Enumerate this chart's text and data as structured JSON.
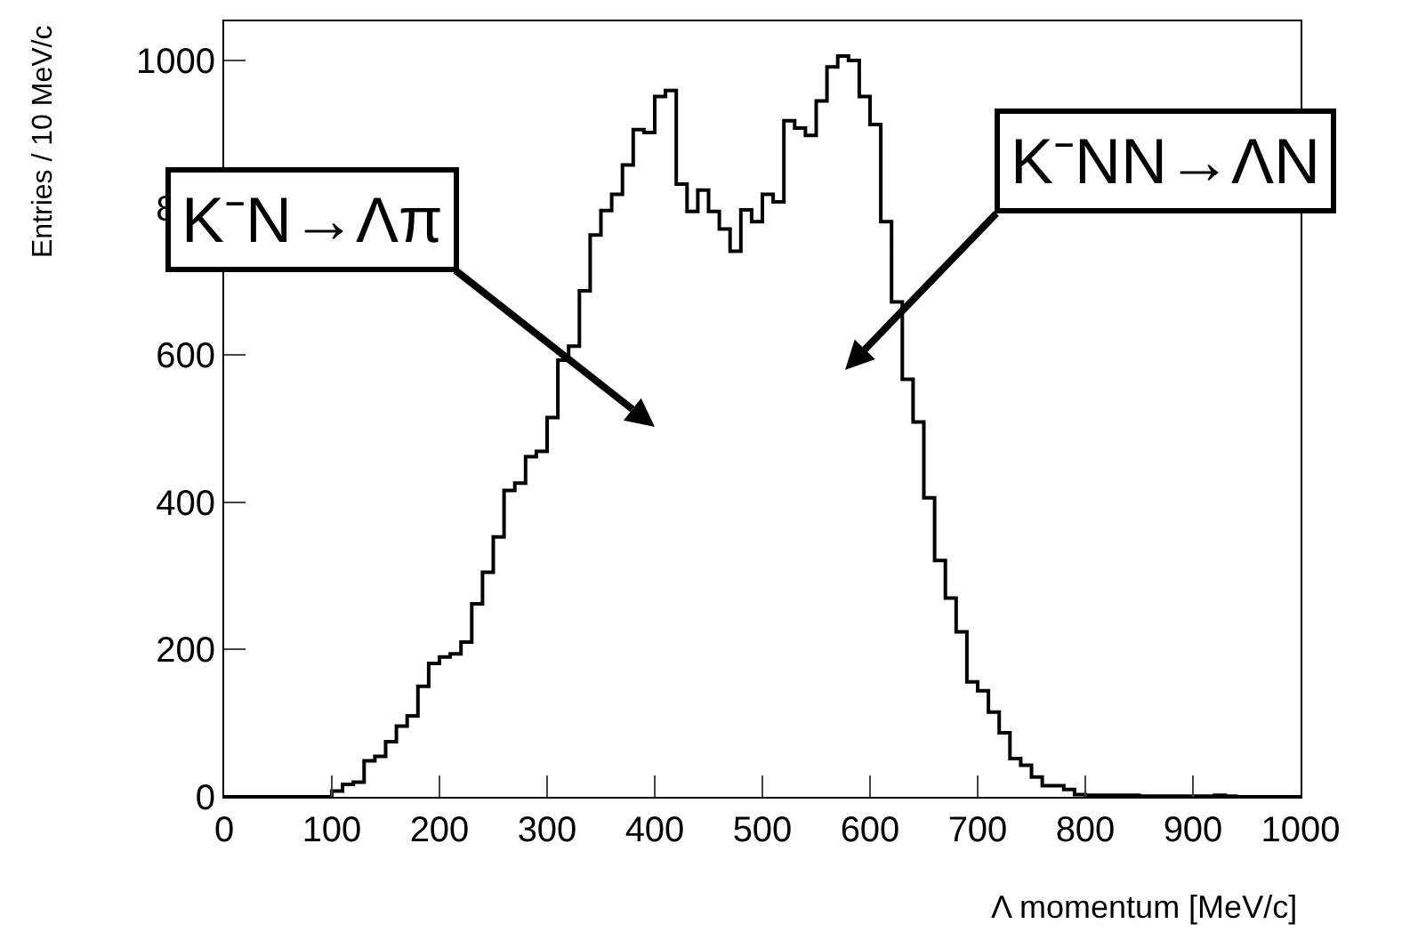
{
  "chart_data": {
    "type": "histogram",
    "xlabel": "Λ momentum [MeV/c]",
    "ylabel": "Entries / 10 MeV/c",
    "bins": [
      0,
      10,
      20,
      30,
      40,
      50,
      60,
      70,
      80,
      90,
      100,
      110,
      120,
      130,
      140,
      150,
      160,
      170,
      180,
      190,
      200,
      210,
      220,
      230,
      240,
      250,
      260,
      270,
      280,
      290,
      300,
      310,
      320,
      330,
      340,
      350,
      360,
      370,
      380,
      390,
      400,
      410,
      420,
      430,
      440,
      450,
      460,
      470,
      480,
      490,
      500,
      510,
      520,
      530,
      540,
      550,
      560,
      570,
      580,
      590,
      600,
      610,
      620,
      630,
      640,
      650,
      660,
      670,
      680,
      690,
      700,
      710,
      720,
      730,
      740,
      750,
      760,
      770,
      780,
      790,
      800,
      810,
      820,
      830,
      840,
      850,
      860,
      870,
      880,
      890,
      900,
      910,
      920,
      930,
      940,
      950,
      960,
      970,
      980,
      990,
      1000
    ],
    "values": [
      0,
      0,
      0,
      0,
      0,
      0,
      0,
      0,
      0,
      0,
      8,
      17,
      20,
      49,
      55,
      75,
      96,
      110,
      150,
      181,
      190,
      194,
      210,
      262,
      305,
      353,
      416,
      426,
      462,
      469,
      515,
      593,
      612,
      687,
      763,
      796,
      818,
      858,
      906,
      902,
      951,
      959,
      832,
      795,
      824,
      795,
      771,
      741,
      797,
      781,
      818,
      808,
      918,
      908,
      898,
      945,
      991,
      1006,
      1000,
      951,
      913,
      781,
      672,
      567,
      509,
      406,
      321,
      270,
      224,
      156,
      144,
      115,
      87,
      52,
      43,
      27,
      15,
      15,
      10,
      3,
      2,
      2,
      2,
      2,
      2,
      1,
      1,
      1,
      1,
      1,
      1,
      1,
      2,
      1,
      0,
      0,
      0,
      0,
      0,
      0
    ],
    "color": "#000000",
    "xlim": [
      0,
      1000
    ],
    "ylim": [
      0,
      1053
    ],
    "xticks": [
      0,
      100,
      200,
      300,
      400,
      500,
      600,
      700,
      800,
      900,
      1000
    ],
    "yticks": [
      0,
      200,
      400,
      600,
      800,
      1000
    ],
    "grid": false,
    "annotations": [
      "K⁻N→Λπ",
      "K⁻NN→ΛN"
    ]
  }
}
